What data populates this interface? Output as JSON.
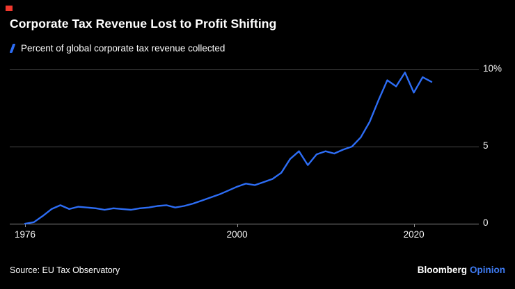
{
  "header": {
    "title": "Corporate Tax Revenue Lost to Profit Shifting",
    "legend_label": "Percent of global corporate tax revenue collected"
  },
  "footer": {
    "source": "Source: EU Tax Observatory",
    "brand": "Bloomberg",
    "brand_suffix": "Opinion"
  },
  "colors": {
    "bg": "#000000",
    "text": "#ffffff",
    "line_blue": "#2d6df5",
    "accent_red": "#f0382d",
    "opinion_blue": "#3e7bf2",
    "grid_gray": "#4a4a4a",
    "baseline_gray": "#8f8f8f"
  },
  "chart_data": {
    "type": "line",
    "title": "Corporate Tax Revenue Lost to Profit Shifting",
    "xlabel": "",
    "ylabel": "Percent of global corporate tax revenue collected",
    "unit": "%",
    "xlim": [
      1976,
      2022
    ],
    "ylim": [
      0,
      10
    ],
    "grid": "horizontal",
    "legend_position": "top-left",
    "y_ticks": [
      {
        "value": 0,
        "label": "0"
      },
      {
        "value": 5,
        "label": "5"
      },
      {
        "value": 10,
        "label": "10%"
      }
    ],
    "x_ticks": [
      {
        "value": 1976,
        "label": "1976"
      },
      {
        "value": 2000,
        "label": "2000"
      },
      {
        "value": 2020,
        "label": "2020"
      }
    ],
    "series": [
      {
        "name": "Percent of global corporate tax revenue collected",
        "x": [
          1976,
          1977,
          1978,
          1979,
          1980,
          1981,
          1982,
          1983,
          1984,
          1985,
          1986,
          1987,
          1988,
          1989,
          1990,
          1991,
          1992,
          1993,
          1994,
          1995,
          1996,
          1997,
          1998,
          1999,
          2000,
          2001,
          2002,
          2003,
          2004,
          2005,
          2006,
          2007,
          2008,
          2009,
          2010,
          2011,
          2012,
          2013,
          2014,
          2015,
          2016,
          2017,
          2018,
          2019,
          2020,
          2021,
          2022
        ],
        "values": [
          0,
          0.1,
          0.5,
          0.95,
          1.2,
          0.95,
          1.1,
          1.05,
          1.0,
          0.9,
          1.0,
          0.95,
          0.9,
          1.0,
          1.05,
          1.15,
          1.2,
          1.05,
          1.15,
          1.3,
          1.5,
          1.7,
          1.9,
          2.15,
          2.4,
          2.6,
          2.5,
          2.7,
          2.9,
          3.3,
          4.2,
          4.7,
          3.8,
          4.5,
          4.7,
          4.55,
          4.8,
          5.0,
          5.6,
          6.6,
          8.0,
          9.3,
          8.9,
          9.8,
          8.5,
          9.5,
          9.2
        ]
      }
    ]
  }
}
